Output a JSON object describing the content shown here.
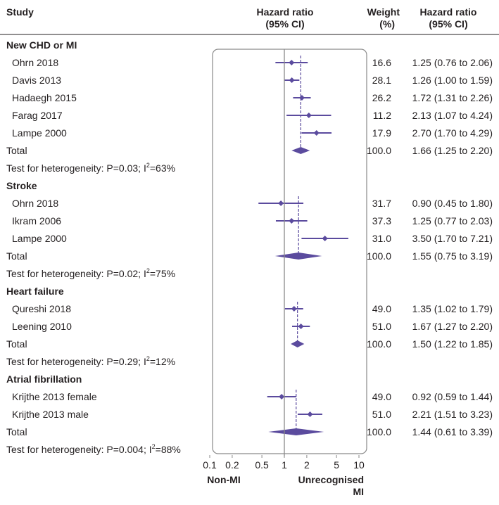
{
  "header": {
    "study": "Study",
    "hr_plot_line1": "Hazard ratio",
    "hr_plot_line2": "(95% CI)",
    "weight_line1": "Weight",
    "weight_line2": "(%)",
    "hr_col_line1": "Hazard ratio",
    "hr_col_line2": "(95% CI)"
  },
  "footer": {
    "left_label": "Non-MI",
    "right_label_line1": "Unrecognised",
    "right_label_line2": "MI"
  },
  "colors": {
    "marker": "#5b4b9e",
    "line": "#5b4b9e",
    "axis": "#8a8a8a",
    "border": "#8a8a8a",
    "text": "#231f20"
  },
  "chart_data": {
    "type": "forest",
    "scale": "log",
    "xlim": [
      0.1,
      10
    ],
    "reference_line": 1,
    "x_ticks": [
      0.1,
      0.2,
      0.5,
      1,
      2,
      5,
      10
    ],
    "x_tick_labels": [
      "0.1",
      "0.2",
      "0.5",
      "1",
      "2",
      "5",
      "10"
    ],
    "groups": [
      {
        "name": "New CHD or MI",
        "studies": [
          {
            "label": "Ohrn 2018",
            "hr": 1.25,
            "lo": 0.76,
            "hi": 2.06,
            "weight": "16.6",
            "ci_text": "1.25 (0.76 to 2.06)"
          },
          {
            "label": "Davis 2013",
            "hr": 1.26,
            "lo": 1.0,
            "hi": 1.59,
            "weight": "28.1",
            "ci_text": "1.26 (1.00 to 1.59)"
          },
          {
            "label": "Hadaegh 2015",
            "hr": 1.72,
            "lo": 1.31,
            "hi": 2.26,
            "weight": "26.2",
            "ci_text": "1.72 (1.31 to 2.26)"
          },
          {
            "label": "Farag 2017",
            "hr": 2.13,
            "lo": 1.07,
            "hi": 4.24,
            "weight": "11.2",
            "ci_text": "2.13 (1.07 to 4.24)"
          },
          {
            "label": "Lampe 2000",
            "hr": 2.7,
            "lo": 1.7,
            "hi": 4.29,
            "weight": "17.9",
            "ci_text": "2.70 (1.70 to 4.29)"
          }
        ],
        "total": {
          "label": "Total",
          "hr": 1.66,
          "lo": 1.25,
          "hi": 2.2,
          "weight": "100.0",
          "ci_text": "1.66 (1.25 to 2.20)"
        },
        "heterogeneity": {
          "text": "Test for heterogeneity: P=0.03; I",
          "sup": "2",
          "tail": "=63%"
        }
      },
      {
        "name": "Stroke",
        "studies": [
          {
            "label": "Ohrn 2018",
            "hr": 0.9,
            "lo": 0.45,
            "hi": 1.8,
            "weight": "31.7",
            "ci_text": "0.90 (0.45 to 1.80)"
          },
          {
            "label": "Ikram 2006",
            "hr": 1.25,
            "lo": 0.77,
            "hi": 2.03,
            "weight": "37.3",
            "ci_text": "1.25 (0.77 to 2.03)"
          },
          {
            "label": "Lampe 2000",
            "hr": 3.5,
            "lo": 1.7,
            "hi": 7.21,
            "weight": "31.0",
            "ci_text": "3.50 (1.70 to 7.21)"
          }
        ],
        "total": {
          "label": "Total",
          "hr": 1.55,
          "lo": 0.75,
          "hi": 3.19,
          "weight": "100.0",
          "ci_text": "1.55 (0.75 to 3.19)"
        },
        "heterogeneity": {
          "text": "Test for heterogeneity: P=0.02; I",
          "sup": "2",
          "tail": "=75%"
        }
      },
      {
        "name": "Heart failure",
        "studies": [
          {
            "label": "Qureshi 2018",
            "hr": 1.35,
            "lo": 1.02,
            "hi": 1.79,
            "weight": "49.0",
            "ci_text": "1.35 (1.02 to 1.79)"
          },
          {
            "label": "Leening 2010",
            "hr": 1.67,
            "lo": 1.27,
            "hi": 2.2,
            "weight": "51.0",
            "ci_text": "1.67 (1.27 to 2.20)"
          }
        ],
        "total": {
          "label": "Total",
          "hr": 1.5,
          "lo": 1.22,
          "hi": 1.85,
          "weight": "100.0",
          "ci_text": "1.50 (1.22 to 1.85)"
        },
        "heterogeneity": {
          "text": "Test for heterogeneity: P=0.29; I",
          "sup": "2",
          "tail": "=12%"
        }
      },
      {
        "name": "Atrial fibrillation",
        "studies": [
          {
            "label": "Krijthe 2013 female",
            "hr": 0.92,
            "lo": 0.59,
            "hi": 1.44,
            "weight": "49.0",
            "ci_text": "0.92 (0.59 to 1.44)"
          },
          {
            "label": "Krijthe 2013 male",
            "hr": 2.21,
            "lo": 1.51,
            "hi": 3.23,
            "weight": "51.0",
            "ci_text": "2.21 (1.51 to 3.23)"
          }
        ],
        "total": {
          "label": "Total",
          "hr": 1.44,
          "lo": 0.61,
          "hi": 3.39,
          "weight": "100.0",
          "ci_text": "1.44 (0.61 to 3.39)"
        },
        "heterogeneity": {
          "text": "Test for heterogeneity: P=0.004; I",
          "sup": "2",
          "tail": "=88%"
        }
      }
    ]
  }
}
